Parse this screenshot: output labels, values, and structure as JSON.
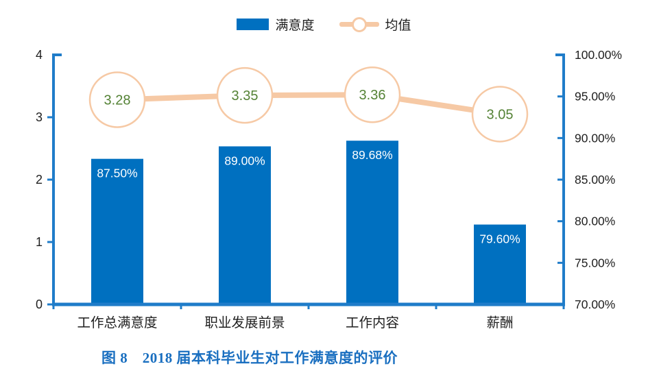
{
  "figure": {
    "caption": "图 8　2018 届本科毕业生对工作满意度的评价",
    "caption_color": "#1A6FC0"
  },
  "legend": {
    "bar_label": "满意度",
    "line_label": "均值"
  },
  "colors": {
    "bar": "#0070C0",
    "axis": "#1F7CC9",
    "line": "#F6C9A5",
    "circle_fill": "#FFFFFF",
    "circle_text": "#548235",
    "bar_label_text": "#FFFFFF",
    "tick_text": "#1F1F1F"
  },
  "chart_data": {
    "type": "bar+line combo",
    "title": "图 8　2018 届本科毕业生对工作满意度的评价",
    "categories": [
      "工作总满意度",
      "职业发展前景",
      "工作内容",
      "薪酬"
    ],
    "series": [
      {
        "name": "满意度",
        "type": "bar",
        "axis": "right",
        "values_pct": [
          87.5,
          89.0,
          89.68,
          79.6
        ],
        "labels": [
          "87.50%",
          "89.00%",
          "89.68%",
          "79.60%"
        ]
      },
      {
        "name": "均值",
        "type": "line",
        "axis": "left",
        "values": [
          3.28,
          3.35,
          3.36,
          3.05
        ],
        "labels": [
          "3.28",
          "3.35",
          "3.36",
          "3.05"
        ]
      }
    ],
    "left_axis": {
      "min": 0,
      "max": 4,
      "ticks": [
        0,
        1,
        2,
        3,
        4
      ],
      "tick_labels": [
        "0",
        "1",
        "2",
        "3",
        "4"
      ]
    },
    "right_axis": {
      "min": 70,
      "max": 100,
      "ticks": [
        70,
        75,
        80,
        85,
        90,
        95,
        100
      ],
      "tick_labels": [
        "70.00%",
        "75.00%",
        "80.00%",
        "85.00%",
        "90.00%",
        "95.00%",
        "100.00%"
      ]
    },
    "grid": false,
    "legend_position": "top-center",
    "legend_entries": [
      "满意度",
      "均值"
    ]
  }
}
